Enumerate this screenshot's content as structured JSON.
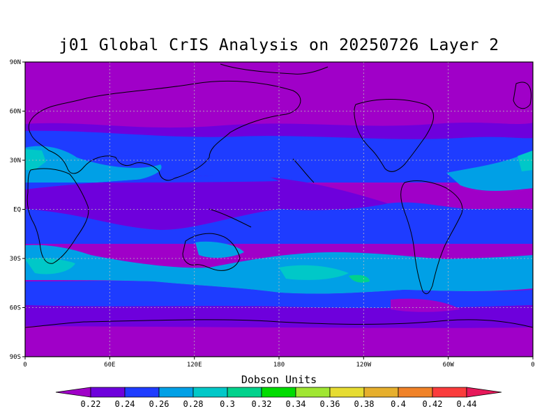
{
  "title": "j01 Global CrIS Analysis on 20250726 Layer 2",
  "units": "Dobson Units",
  "lat_ticks": [
    "90N",
    "60N",
    "30N",
    "EQ",
    "30S",
    "60S",
    "90S"
  ],
  "lon_ticks": [
    "0",
    "60E",
    "120E",
    "180",
    "120W",
    "60W",
    "0"
  ],
  "colorbar": {
    "levels": [
      "0.22",
      "0.24",
      "0.26",
      "0.28",
      "0.3",
      "0.32",
      "0.34",
      "0.36",
      "0.38",
      "0.4",
      "0.42",
      "0.44"
    ],
    "colors": [
      "#a000c8",
      "#6e00dc",
      "#1e3cff",
      "#00a0e6",
      "#00c8c8",
      "#00d28c",
      "#00dc00",
      "#a0e632",
      "#e6dc32",
      "#e6af2d",
      "#f08228",
      "#fa3c3c",
      "#e6195a"
    ]
  },
  "chart_data": {
    "type": "heatmap",
    "title": "j01 Global CrIS Analysis on 20250726 Layer 2",
    "colorbar_label": "Dobson Units",
    "x_range": [
      "0",
      "0"
    ],
    "y_range": [
      "90S",
      "90N"
    ],
    "grid": true,
    "zonal_bands": [
      {
        "lat": "90N-55N",
        "value_range": "0.22-0.24"
      },
      {
        "lat": "55N-40N",
        "value_range": "0.24-0.26"
      },
      {
        "lat": "40N-15N",
        "value_range": "0.26-0.30"
      },
      {
        "lat": "15N-15S",
        "value_range": "0.22-0.26"
      },
      {
        "lat": "15S-45S",
        "value_range": "0.26-0.32"
      },
      {
        "lat": "45S-60S",
        "value_range": "0.24-0.26"
      },
      {
        "lat": "60S-90S",
        "value_range": "0.22-0.24"
      }
    ]
  }
}
